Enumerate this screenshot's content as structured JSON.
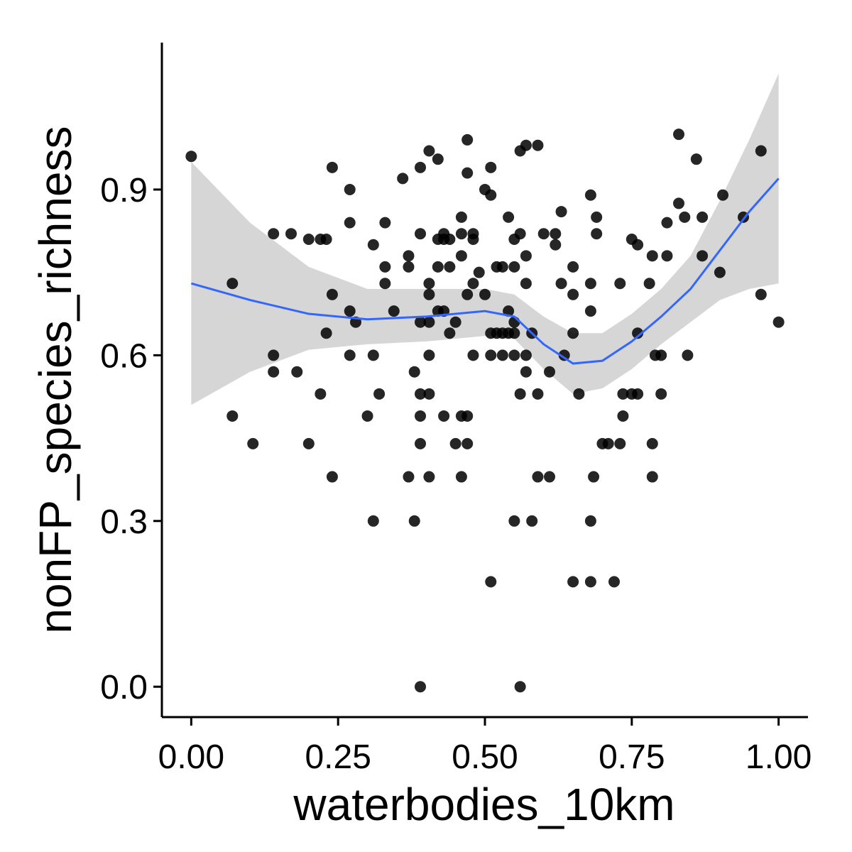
{
  "chart_data": {
    "type": "scatter",
    "x_label": "waterbodies_10km",
    "y_label": "nonFP_species_richness",
    "xlim": [
      -0.05,
      1.05
    ],
    "ylim": [
      -0.055,
      1.166
    ],
    "xticks": [
      {
        "value": 0,
        "label": "0.00"
      },
      {
        "value": 0.25,
        "label": "0.25"
      },
      {
        "value": 0.5,
        "label": "0.50"
      },
      {
        "value": 0.75,
        "label": "0.75"
      },
      {
        "value": 1,
        "label": "1.00"
      }
    ],
    "yticks": [
      {
        "value": 0,
        "label": "0.0"
      },
      0.3,
      0.6,
      0.9
    ],
    "color": "#000000",
    "x": [
      0,
      0.07,
      0.07,
      0.105,
      0.14,
      0.14,
      0.14,
      0.17,
      0.18,
      0.2,
      0.22,
      0.23,
      0.2,
      0.22,
      0.23,
      0.24,
      0.24,
      0.24,
      0.27,
      0.27,
      0.27,
      0.27,
      0.28,
      0.3,
      0.31,
      0.31,
      0.31,
      0.32,
      0.33,
      0.33,
      0.33,
      0.345,
      0.36,
      0.37,
      0.37,
      0.37,
      0.38,
      0.38,
      0.39,
      0.39,
      0.39,
      0.39,
      0.39,
      0.39,
      0.39,
      0.405,
      0.405,
      0.405,
      0.405,
      0.405,
      0.405,
      0.405,
      0.42,
      0.42,
      0.42,
      0.42,
      0.43,
      0.43,
      0.43,
      0.43,
      0.44,
      0.44,
      0.44,
      0.45,
      0.45,
      0.46,
      0.46,
      0.46,
      0.46,
      0.46,
      0.47,
      0.47,
      0.47,
      0.47,
      0.47,
      0.48,
      0.48,
      0.48,
      0.48,
      0.49,
      0.5,
      0.5,
      0.51,
      0.51,
      0.51,
      0.51,
      0.51,
      0.52,
      0.52,
      0.53,
      0.53,
      0.53,
      0.54,
      0.54,
      0.54,
      0.55,
      0.55,
      0.55,
      0.55,
      0.55,
      0.55,
      0.56,
      0.56,
      0.56,
      0.56,
      0.57,
      0.57,
      0.57,
      0.57,
      0.57,
      0.58,
      0.58,
      0.59,
      0.59,
      0.59,
      0.6,
      0.61,
      0.61,
      0.62,
      0.62,
      0.63,
      0.63,
      0.635,
      0.65,
      0.65,
      0.65,
      0.65,
      0.66,
      0.68,
      0.68,
      0.68,
      0.68,
      0.68,
      0.685,
      0.69,
      0.69,
      0.7,
      0.71,
      0.72,
      0.73,
      0.73,
      0.735,
      0.735,
      0.75,
      0.75,
      0.76,
      0.76,
      0.76,
      0.78,
      0.785,
      0.785,
      0.785,
      0.79,
      0.8,
      0.8,
      0.81,
      0.81,
      0.83,
      0.83,
      0.84,
      0.845,
      0.86,
      0.87,
      0.87,
      0.905,
      0.9,
      0.94,
      0.97,
      0.97,
      1.0
    ],
    "values": [
      0.96,
      0.73,
      0.49,
      0.44,
      0.82,
      0.6,
      0.57,
      0.82,
      0.57,
      0.81,
      0.81,
      0.81,
      0.44,
      0.53,
      0.64,
      0.94,
      0.71,
      0.38,
      0.9,
      0.84,
      0.68,
      0.6,
      0.66,
      0.49,
      0.8,
      0.6,
      0.3,
      0.53,
      0.84,
      0.76,
      0.73,
      0.68,
      0.92,
      0.78,
      0.76,
      0.38,
      0.57,
      0.3,
      0.94,
      0.82,
      0.66,
      0.53,
      0.49,
      0.44,
      0,
      0.97,
      0.73,
      0.71,
      0.66,
      0.6,
      0.53,
      0.38,
      0.955,
      0.81,
      0.76,
      0.68,
      0.82,
      0.81,
      0.68,
      0.49,
      0.81,
      0.76,
      0.64,
      0.66,
      0.44,
      0.85,
      0.82,
      0.78,
      0.49,
      0.38,
      0.99,
      0.93,
      0.71,
      0.49,
      0.44,
      0.82,
      0.81,
      0.73,
      0.6,
      0.75,
      0.9,
      0.71,
      0.94,
      0.89,
      0.64,
      0.6,
      0.19,
      0.76,
      0.64,
      0.76,
      0.64,
      0.6,
      0.85,
      0.68,
      0.64,
      0.81,
      0.76,
      0.64,
      0.3,
      0.66,
      0.6,
      0.97,
      0.82,
      0.53,
      0,
      0.98,
      0.78,
      0.73,
      0.6,
      0.57,
      0.64,
      0.3,
      0.98,
      0.53,
      0.38,
      0.82,
      0.57,
      0.38,
      0.82,
      0.8,
      0.86,
      0.73,
      0.6,
      0.76,
      0.71,
      0.64,
      0.19,
      0.53,
      0.89,
      0.73,
      0.68,
      0.3,
      0.19,
      0.38,
      0.85,
      0.82,
      0.44,
      0.44,
      0.19,
      0.73,
      0.44,
      0.49,
      0.53,
      0.81,
      0.53,
      0.8,
      0.64,
      0.53,
      0.73,
      0.78,
      0.44,
      0.38,
      0.6,
      0.6,
      0.53,
      0.84,
      0.78,
      1.0,
      0.875,
      0.85,
      0.6,
      0.955,
      0.85,
      0.78,
      0.89,
      0.75,
      0.85,
      0.97,
      0.71,
      0.66
    ],
    "smooth": {
      "color": "#3366ff",
      "band_color": "#999999",
      "x": [
        0,
        0.1,
        0.2,
        0.3,
        0.4,
        0.5,
        0.55,
        0.6,
        0.65,
        0.7,
        0.75,
        0.8,
        0.85,
        0.9,
        0.95,
        1.0
      ],
      "y": [
        0.73,
        0.7,
        0.675,
        0.665,
        0.67,
        0.68,
        0.67,
        0.62,
        0.585,
        0.59,
        0.625,
        0.67,
        0.72,
        0.79,
        0.86,
        0.92
      ],
      "ymin": [
        0.51,
        0.57,
        0.61,
        0.62,
        0.625,
        0.635,
        0.63,
        0.575,
        0.53,
        0.54,
        0.575,
        0.62,
        0.66,
        0.7,
        0.72,
        0.73
      ],
      "ymax": [
        0.95,
        0.84,
        0.76,
        0.72,
        0.72,
        0.72,
        0.71,
        0.67,
        0.64,
        0.64,
        0.675,
        0.72,
        0.78,
        0.88,
        0.99,
        1.11
      ]
    }
  }
}
